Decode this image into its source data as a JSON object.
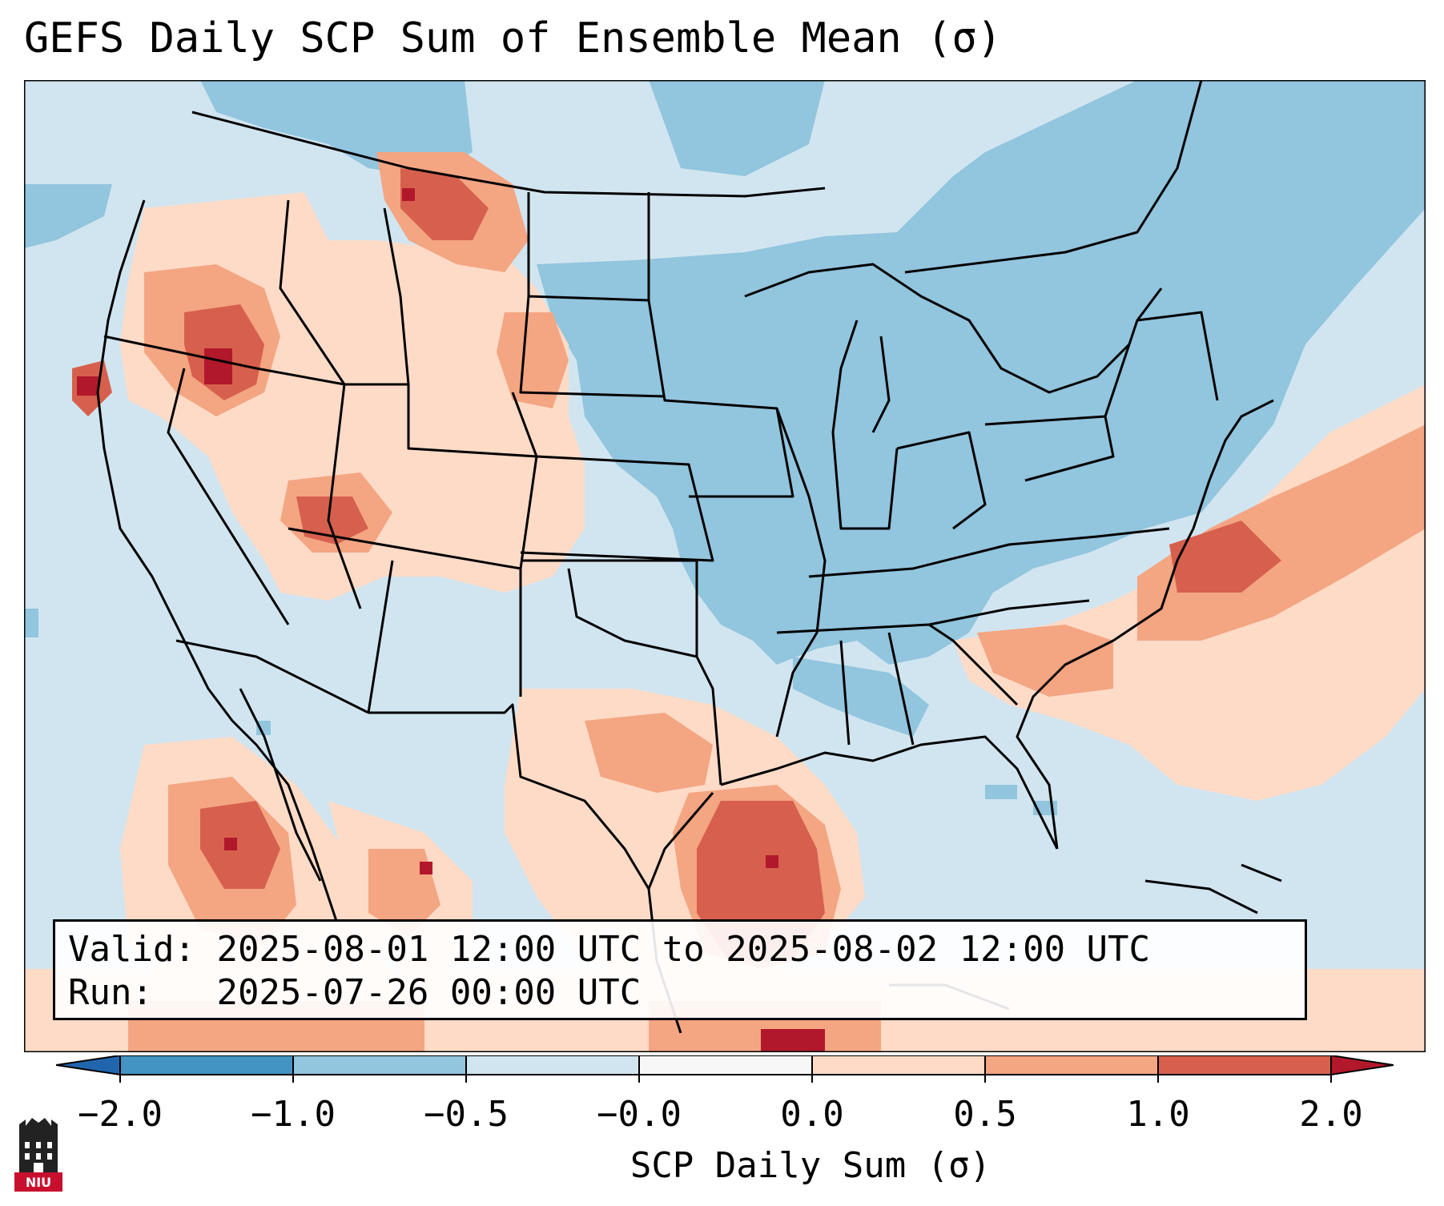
{
  "title": "GEFS Daily SCP Sum of Ensemble Mean (σ)",
  "map": {
    "region": "Contiguous United States, southern Canada, northern Mexico",
    "fields": [
      {
        "area": "Upper Midwest, Great Lakes, Ohio Valley, Northeast",
        "value_bin": "-1.0 to -0.5"
      },
      {
        "area": "Central Plains, West",
        "value_bin": "-0.5 to 0.0"
      },
      {
        "area": "Texas Gulf Coast",
        "value_bin": "1.0 to 2.0"
      },
      {
        "area": "Carolinas offshore",
        "value_bin": "1.0 to 2.0"
      },
      {
        "area": "Southern Oregon / northern California",
        "value_bin": "1.0 to 2.0"
      },
      {
        "area": "Montana / Wyoming / Black Hills",
        "value_bin": "0.5 to 1.0"
      }
    ]
  },
  "info": {
    "valid_label": "Valid:",
    "valid_value": "2025-08-01 12:00 UTC to 2025-08-02 12:00 UTC",
    "run_label": "Run:",
    "run_value": "2025-07-26 00:00 UTC"
  },
  "colorbar": {
    "label": "SCP Daily Sum (σ)",
    "ticks": [
      "−2.0",
      "−1.0",
      "−0.5",
      "−0.0",
      "0.0",
      "0.5",
      "1.0",
      "2.0"
    ],
    "colors": [
      "#2166ac",
      "#4393c3",
      "#92c5de",
      "#d1e5f0",
      "#f7f7f7",
      "#fddbc7",
      "#f4a582",
      "#d6604d",
      "#b2182b"
    ],
    "extend": "both"
  },
  "logo": {
    "text": "NIU"
  }
}
